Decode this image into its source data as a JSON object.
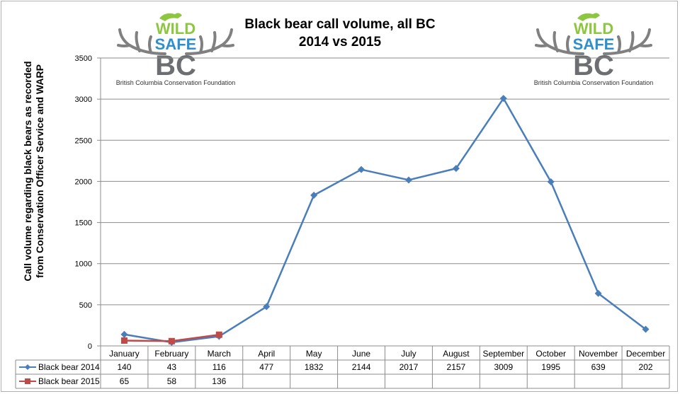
{
  "logo": {
    "line1": "WILD",
    "line2": "SAFE",
    "line3": "BC",
    "caption": "British Columbia Conservation Foundation",
    "colors": {
      "wild": "#8dc63f",
      "safe": "#2e8fcc",
      "bc": "#6d6e71",
      "antler": "#808080"
    }
  },
  "chart_data": {
    "type": "line",
    "title": [
      "Black bear call volume, all BC",
      "2014 vs 2015"
    ],
    "ylabel": "Call volume regarding black bears as recorded from Conservation Officer Service and WARP",
    "xlabel": "",
    "categories": [
      "January",
      "February",
      "March",
      "April",
      "May",
      "June",
      "July",
      "August",
      "September",
      "October",
      "November",
      "December"
    ],
    "ylim": [
      0,
      3500
    ],
    "yticks": [
      "0",
      "500",
      "1000",
      "1500",
      "2000",
      "2500",
      "3000",
      "3500"
    ],
    "grid": "horizontal",
    "legend": "data-table",
    "series": [
      {
        "name": "Black bear 2014",
        "color": "#4a7ebb",
        "marker": "diamond",
        "values": [
          140,
          43,
          116,
          477,
          1832,
          2144,
          2017,
          2157,
          3009,
          1995,
          639,
          202
        ]
      },
      {
        "name": "Black bear 2015",
        "color": "#be4b48",
        "marker": "square",
        "values": [
          65,
          58,
          136,
          null,
          null,
          null,
          null,
          null,
          null,
          null,
          null,
          null
        ]
      }
    ]
  }
}
